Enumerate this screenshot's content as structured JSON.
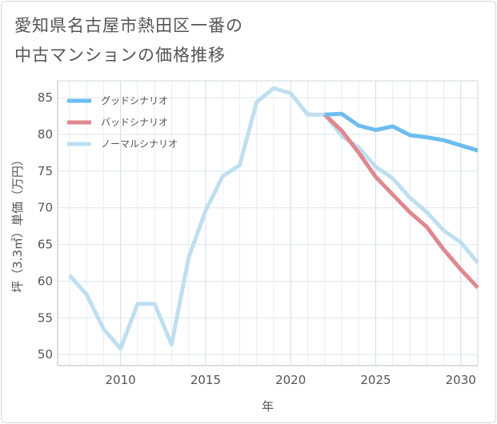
{
  "title_lines": [
    "愛知県名古屋市熱田区一番の",
    "中古マンションの価格推移"
  ],
  "chart_data": {
    "type": "line",
    "xlabel": "年",
    "ylabel": "坪（3.3㎡）単価（万円）",
    "xlim": [
      2006.3,
      2031
    ],
    "ylim": [
      48.5,
      87.3
    ],
    "xticks": [
      2010,
      2015,
      2020,
      2025,
      2030
    ],
    "yticks": [
      50,
      55,
      60,
      65,
      70,
      75,
      80,
      85
    ],
    "grid": true,
    "legend_position": "top-left",
    "series": [
      {
        "name": "グッドシナリオ",
        "color": "#6cbcf0",
        "x": [
          2022,
          2023,
          2024,
          2025,
          2026,
          2027,
          2028,
          2029,
          2030,
          2031
        ],
        "y": [
          82.7,
          82.8,
          81.2,
          80.6,
          81.1,
          79.9,
          79.6,
          79.2,
          78.5,
          77.8
        ]
      },
      {
        "name": "バッドシナリオ",
        "color": "#e0888f",
        "x": [
          2022,
          2023,
          2024,
          2025,
          2026,
          2027,
          2028,
          2029,
          2030,
          2031
        ],
        "y": [
          82.7,
          80.5,
          77.5,
          74.2,
          71.8,
          69.4,
          67.4,
          64.3,
          61.6,
          59.1
        ]
      },
      {
        "name": "ノーマルシナリオ",
        "color": "#bfdfef",
        "x": [
          2007,
          2008,
          2009,
          2010,
          2011,
          2012,
          2013,
          2014,
          2015,
          2016,
          2017,
          2018,
          2019,
          2020,
          2021,
          2022,
          2023,
          2024,
          2025,
          2026,
          2027,
          2028,
          2029,
          2030,
          2031
        ],
        "y": [
          60.8,
          58.2,
          53.5,
          50.8,
          56.9,
          56.9,
          51.4,
          63.2,
          69.6,
          74.3,
          75.8,
          84.4,
          86.3,
          85.6,
          82.7,
          82.7,
          79.8,
          78.2,
          75.6,
          74.0,
          71.4,
          69.4,
          66.9,
          65.3,
          62.5
        ]
      }
    ]
  }
}
